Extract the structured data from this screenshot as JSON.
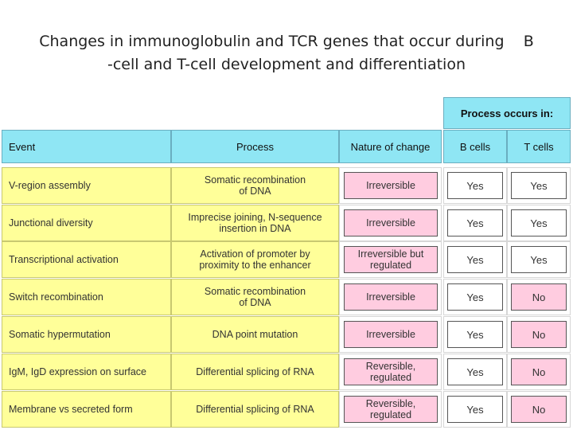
{
  "title": {
    "line1": "Changes in immunoglobulin and TCR genes that occur during    B",
    "line2": "-cell and T-cell development and differentiation"
  },
  "table": {
    "process_occurs_in": "Process occurs in:",
    "headers": {
      "event": "Event",
      "process": "Process",
      "nature": "Nature of change",
      "b_cells": "B cells",
      "t_cells": "T cells"
    },
    "rows": [
      {
        "event": "V-region assembly",
        "process": "Somatic recombination\nof DNA",
        "nature": "Irreversible",
        "b": "Yes",
        "t": "Yes",
        "t_color": "#ffffff"
      },
      {
        "event": "Junctional diversity",
        "process": "Imprecise joining, N-sequence\ninsertion in DNA",
        "nature": "Irreversible",
        "b": "Yes",
        "t": "Yes",
        "t_color": "#ffffff"
      },
      {
        "event": "Transcriptional activation",
        "process": "Activation of promoter by\nproximity to the enhancer",
        "nature": "Irreversible but\nregulated",
        "b": "Yes",
        "t": "Yes",
        "t_color": "#ffffff"
      },
      {
        "event": "Switch recombination",
        "process": "Somatic recombination\nof DNA",
        "nature": "Irreversible",
        "b": "Yes",
        "t": "No",
        "t_color": "#ffcce0"
      },
      {
        "event": "Somatic hypermutation",
        "process": "DNA point mutation",
        "nature": "Irreversible",
        "b": "Yes",
        "t": "No",
        "t_color": "#ffcce0"
      },
      {
        "event": "IgM, IgD expression on surface",
        "process": "Differential splicing of RNA",
        "nature": "Reversible,\nregulated",
        "b": "Yes",
        "t": "No",
        "t_color": "#ffcce0"
      },
      {
        "event": "Membrane vs secreted form",
        "process": "Differential splicing of RNA",
        "nature": "Reversible,\nregulated",
        "b": "Yes",
        "t": "No",
        "t_color": "#ffcce0"
      }
    ]
  },
  "colors": {
    "header_cyan": "#8fe6f4",
    "cell_yellow": "#ffff99",
    "nature_pink": "#ffcce0",
    "box_white": "#ffffff"
  }
}
